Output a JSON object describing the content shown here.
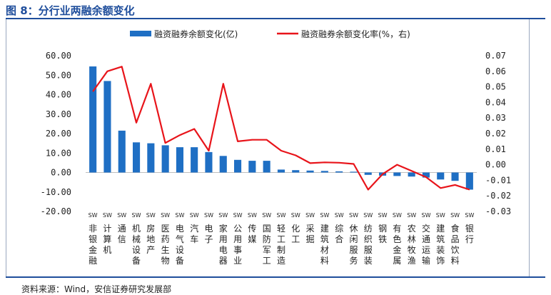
{
  "title": "图 8：分行业两融余额变化",
  "source": "资料来源：Wind，安信证券研究发展部",
  "colors": {
    "bar": "#1f6fc4",
    "line": "#e8141a",
    "title": "#1f4e9c"
  },
  "chart_data": {
    "type": "bar",
    "legend_position": "top",
    "grid": false,
    "categories": [
      "SW非银金融",
      "SW计算机",
      "SW通信",
      "SW机械设备",
      "SW房地产",
      "SW医药生物",
      "SW电气设备",
      "SW汽车",
      "SW电子",
      "SW家用电器",
      "SW公用事业",
      "SW传媒",
      "SW国防军工",
      "SW轻工制造",
      "SW化工",
      "SW采掘",
      "SW建筑材料",
      "SW综合",
      "SW休闲服务",
      "SW纺织服装",
      "SW钢铁",
      "SW有色金属",
      "SW农林牧渔",
      "SW交通运输",
      "SW建筑装饰",
      "SW食品饮料",
      "SW银行"
    ],
    "series": [
      {
        "name": "融资融券余额变化(亿)",
        "type": "bar",
        "axis": "left",
        "values": [
          54.5,
          47.0,
          21.5,
          15.5,
          15.0,
          14.0,
          13.0,
          13.0,
          10.5,
          8.5,
          6.5,
          6.0,
          6.0,
          1.5,
          1.2,
          1.0,
          0.8,
          0.6,
          0.4,
          -1.2,
          -1.6,
          -1.8,
          -2.1,
          -2.6,
          -3.6,
          -4.3,
          -8.8
        ]
      },
      {
        "name": "融资融券余额变化率(%，右)",
        "type": "line",
        "axis": "right",
        "values": [
          0.047,
          0.06,
          0.063,
          0.027,
          0.052,
          0.014,
          0.019,
          0.023,
          0.009,
          0.052,
          0.015,
          0.016,
          0.016,
          0.009,
          0.006,
          0.001,
          0.0015,
          0.0013,
          0.0005,
          -0.016,
          -0.006,
          0.0,
          -0.004,
          -0.008,
          -0.015,
          -0.013,
          -0.016
        ]
      }
    ],
    "y_left": {
      "ylim": [
        -20,
        60
      ],
      "ticks": [
        "60.00",
        "50.00",
        "40.00",
        "30.00",
        "20.00",
        "10.00",
        "0.00",
        "-10.00",
        "-20.00"
      ]
    },
    "y_right": {
      "ylim": [
        -0.03,
        0.07
      ],
      "ticks": [
        "0.07",
        "0.06",
        "0.05",
        "0.04",
        "0.03",
        "0.02",
        "0.01",
        "0.00",
        "-0.01",
        "-0.02",
        "-0.03"
      ]
    }
  }
}
